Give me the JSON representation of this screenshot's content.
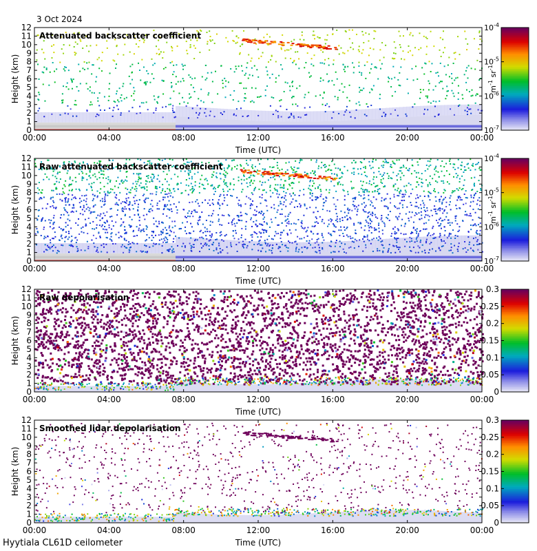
{
  "header": {
    "date": "3 Oct 2024"
  },
  "footer": {
    "site": "Hyytiala CL61D ceilometer"
  },
  "colors": {
    "sky_blue_low": "#e8e8f6",
    "ground_grey": "#d6d6d6",
    "purple": "#7a0a5a",
    "blue": "#2a2ae0"
  },
  "chart_data": [
    {
      "type": "heatmap",
      "title": "Attenuated backscatter coefficient",
      "xlabel": "Time (UTC)",
      "ylabel": "Height (km)",
      "x_ticks": [
        "00:00",
        "04:00",
        "08:00",
        "12:00",
        "16:00",
        "20:00",
        "00:00"
      ],
      "xlim_hours": [
        0,
        24
      ],
      "ylim": [
        0,
        12
      ],
      "y_ticks": [
        0,
        1,
        2,
        3,
        4,
        5,
        6,
        7,
        8,
        9,
        10,
        11,
        12
      ],
      "colorbar": {
        "scale": "log",
        "range": [
          1e-07,
          0.0001
        ],
        "ticks": [
          {
            "base": "10",
            "exp": "-4"
          },
          {
            "base": "10",
            "exp": "-5"
          },
          {
            "base": "10",
            "exp": "-6"
          },
          {
            "base": "10",
            "exp": "-7"
          }
        ],
        "unit_a": "m",
        "unit_a_exp": "-1",
        "unit_b": "sr",
        "unit_b_exp": "-1"
      }
    },
    {
      "type": "heatmap",
      "title": "Raw attenuated backscatter coefficient",
      "xlabel": "Time (UTC)",
      "ylabel": "Height (km)",
      "x_ticks": [
        "00:00",
        "04:00",
        "08:00",
        "12:00",
        "16:00",
        "20:00",
        "00:00"
      ],
      "xlim_hours": [
        0,
        24
      ],
      "ylim": [
        0,
        12
      ],
      "y_ticks": [
        0,
        1,
        2,
        3,
        4,
        5,
        6,
        7,
        8,
        9,
        10,
        11,
        12
      ],
      "colorbar": {
        "scale": "log",
        "range": [
          1e-07,
          0.0001
        ],
        "ticks": [
          {
            "base": "10",
            "exp": "-4"
          },
          {
            "base": "10",
            "exp": "-5"
          },
          {
            "base": "10",
            "exp": "-6"
          },
          {
            "base": "10",
            "exp": "-7"
          }
        ],
        "unit_a": "m",
        "unit_a_exp": "-1",
        "unit_b": "sr",
        "unit_b_exp": "-1"
      }
    },
    {
      "type": "heatmap",
      "title": "Raw depolarisation",
      "xlabel": "Time (UTC)",
      "ylabel": "Height (km)",
      "x_ticks": [
        "00:00",
        "04:00",
        "08:00",
        "12:00",
        "16:00",
        "20:00",
        "00:00"
      ],
      "xlim_hours": [
        0,
        24
      ],
      "ylim": [
        0,
        12
      ],
      "y_ticks": [
        0,
        1,
        2,
        3,
        4,
        5,
        6,
        7,
        8,
        9,
        10,
        11,
        12
      ],
      "colorbar": {
        "scale": "linear",
        "range": [
          0,
          0.3
        ],
        "ticks": [
          "0.3",
          "0.25",
          "0.2",
          "0.15",
          "0.1",
          "0.05",
          "0"
        ]
      }
    },
    {
      "type": "heatmap",
      "title": "Smoothed lidar depolarisation",
      "xlabel": "Time (UTC)",
      "ylabel": "Height (km)",
      "x_ticks": [
        "00:00",
        "04:00",
        "08:00",
        "12:00",
        "16:00",
        "20:00",
        "00:00"
      ],
      "xlim_hours": [
        0,
        24
      ],
      "ylim": [
        0,
        12
      ],
      "y_ticks": [
        0,
        1,
        2,
        3,
        4,
        5,
        6,
        7,
        8,
        9,
        10,
        11,
        12
      ],
      "colorbar": {
        "scale": "linear",
        "range": [
          0,
          0.3
        ],
        "ticks": [
          "0.3",
          "0.25",
          "0.2",
          "0.15",
          "0.1",
          "0.05",
          "0"
        ]
      }
    }
  ]
}
